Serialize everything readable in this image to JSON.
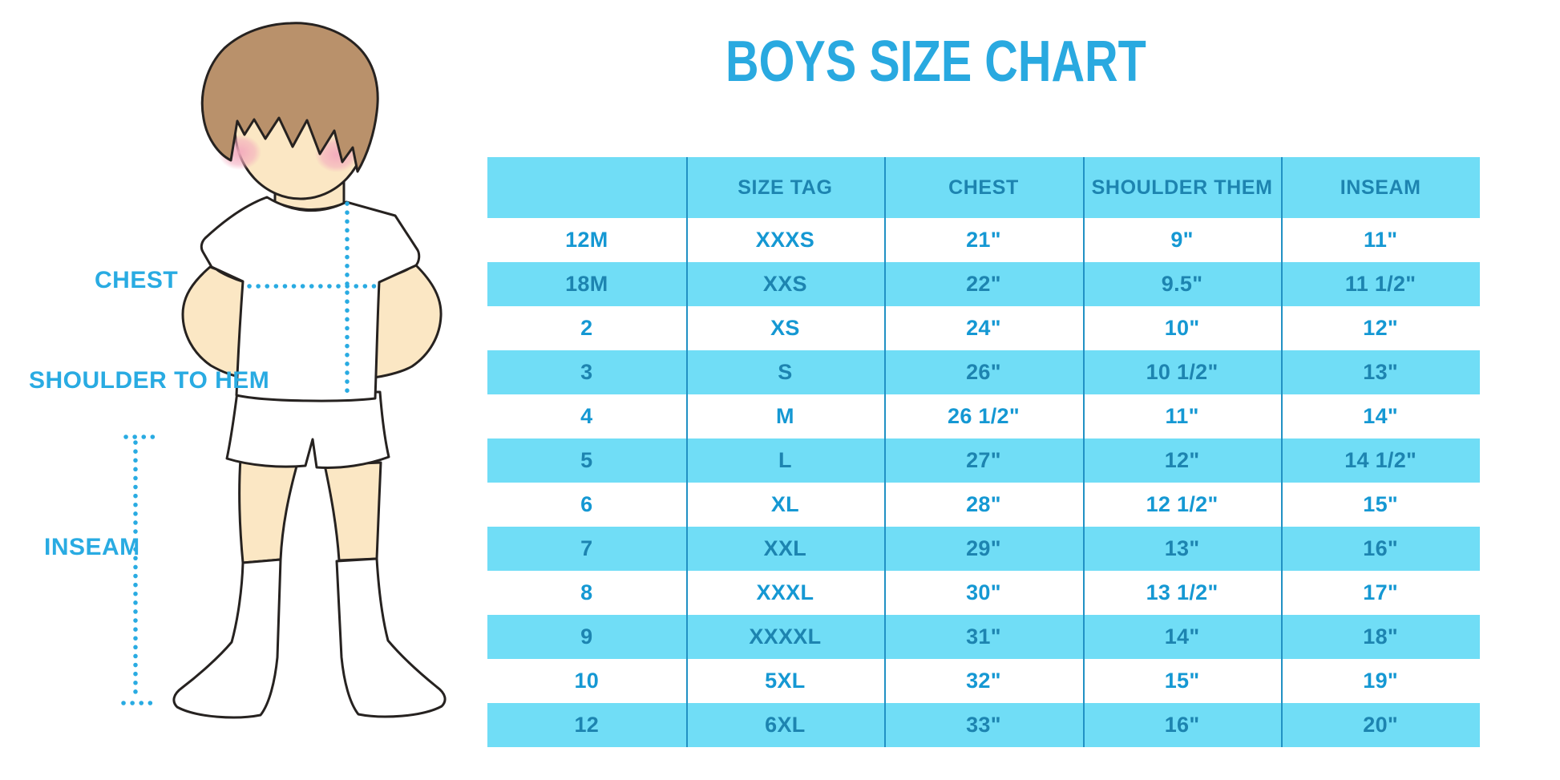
{
  "title": "BOYS SIZE CHART",
  "figure": {
    "labels": {
      "chest": "CHEST",
      "shoulder_to_hem": "SHOULDER TO HEM",
      "inseam": "INSEAM"
    }
  },
  "table": {
    "headers": [
      "",
      "SIZE TAG",
      "CHEST",
      "SHOULDER THEM",
      "INSEAM"
    ],
    "rows": [
      [
        "12M",
        "XXXS",
        "21\"",
        "9\"",
        "11\""
      ],
      [
        "18M",
        "XXS",
        "22\"",
        "9.5\"",
        "11 1/2\""
      ],
      [
        "2",
        "XS",
        "24\"",
        "10\"",
        "12\""
      ],
      [
        "3",
        "S",
        "26\"",
        "10 1/2\"",
        "13\""
      ],
      [
        "4",
        "M",
        "26 1/2\"",
        "11\"",
        "14\""
      ],
      [
        "5",
        "L",
        "27\"",
        "12\"",
        "14 1/2\""
      ],
      [
        "6",
        "XL",
        "28\"",
        "12 1/2\"",
        "15\""
      ],
      [
        "7",
        "XXL",
        "29\"",
        "13\"",
        "16\""
      ],
      [
        "8",
        "XXXL",
        "30\"",
        "13 1/2\"",
        "17\""
      ],
      [
        "9",
        "XXXXL",
        "31\"",
        "14\"",
        "18\""
      ],
      [
        "10",
        "5XL",
        "32\"",
        "15\"",
        "19\""
      ],
      [
        "12",
        "6XL",
        "33\"",
        "16\"",
        "20\""
      ]
    ]
  },
  "colors": {
    "title_blue": "#29a9e0",
    "label_blue": "#29abe2",
    "band_blue": "#70ddf6",
    "header_text": "#1d84b0",
    "cell_text": "#1598d3",
    "divider": "#2191c4",
    "skin": "#fbe7c4",
    "hair": "#b9916b",
    "blush": "#f3a9bd",
    "outline": "#262220"
  }
}
